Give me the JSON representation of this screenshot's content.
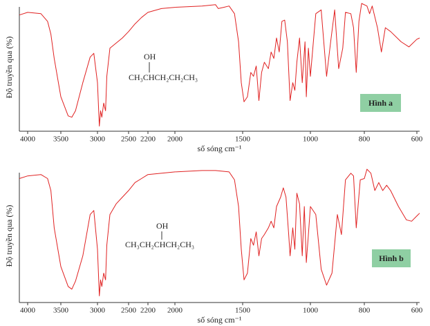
{
  "chart_data": [
    {
      "type": "line",
      "color": "#e02020",
      "ylabel": "Độ truyền qua (%)",
      "xlabel": "số sóng cm⁻¹",
      "annotation": {
        "substituent": "OH",
        "chain": "CH₃CHCH₂CH₂CH₃",
        "label": "Hình a"
      },
      "xlim": [
        4120,
        590
      ],
      "xticks": [
        4000,
        3500,
        3000,
        2500,
        2200,
        2000,
        1500,
        1000,
        800,
        600
      ],
      "ylim": [
        0,
        100
      ],
      "x": [
        4120,
        4000,
        3800,
        3700,
        3650,
        3600,
        3500,
        3400,
        3350,
        3300,
        3200,
        3100,
        3050,
        3000,
        2970,
        2950,
        2930,
        2900,
        2870,
        2850,
        2800,
        2700,
        2600,
        2500,
        2400,
        2300,
        2200,
        2100,
        2000,
        1800,
        1700,
        1680,
        1640,
        1600,
        1560,
        1530,
        1510,
        1490,
        1465,
        1440,
        1420,
        1400,
        1380,
        1360,
        1340,
        1310,
        1290,
        1270,
        1250,
        1230,
        1210,
        1190,
        1170,
        1150,
        1130,
        1115,
        1100,
        1080,
        1060,
        1040,
        1030,
        1015,
        1000,
        980,
        960,
        940,
        925,
        910,
        895,
        880,
        870,
        850,
        840,
        830,
        820,
        810,
        790,
        780,
        770,
        750,
        735,
        720,
        700,
        660,
        630,
        600,
        590
      ],
      "values": [
        91,
        93,
        92,
        86,
        76,
        57,
        27,
        12,
        11,
        16,
        38,
        58,
        61,
        38,
        4,
        16,
        11,
        22,
        16,
        43,
        65,
        69,
        73,
        78,
        84,
        89,
        93,
        96,
        97,
        98,
        99,
        96,
        97,
        98,
        92,
        70,
        38,
        23,
        27,
        46,
        43,
        51,
        24,
        46,
        54,
        49,
        62,
        57,
        73,
        62,
        86,
        87,
        70,
        24,
        38,
        32,
        54,
        73,
        38,
        70,
        27,
        65,
        43,
        92,
        95,
        43,
        70,
        95,
        49,
        65,
        93,
        92,
        81,
        46,
        86,
        100,
        98,
        92,
        98,
        81,
        62,
        81,
        78,
        70,
        66,
        72,
        73
      ]
    },
    {
      "type": "line",
      "color": "#e02020",
      "ylabel": "Độ truyền qua (%)",
      "xlabel": "số sóng cm⁻¹",
      "annotation": {
        "substituent": "OH",
        "chain": "CH₃CH₂CHCH₂CH₃",
        "label": "Hình b"
      },
      "xlim": [
        4120,
        590
      ],
      "xticks": [
        4000,
        3500,
        3000,
        2500,
        2200,
        2000,
        1500,
        1000,
        800,
        600
      ],
      "ylim": [
        0,
        100
      ],
      "x": [
        4120,
        4000,
        3800,
        3700,
        3650,
        3600,
        3500,
        3400,
        3350,
        3300,
        3200,
        3100,
        3050,
        3000,
        2970,
        2950,
        2930,
        2900,
        2870,
        2850,
        2800,
        2700,
        2600,
        2500,
        2400,
        2300,
        2200,
        2000,
        1800,
        1700,
        1600,
        1560,
        1530,
        1510,
        1490,
        1465,
        1440,
        1420,
        1400,
        1380,
        1360,
        1340,
        1310,
        1290,
        1270,
        1250,
        1220,
        1200,
        1180,
        1160,
        1150,
        1130,
        1115,
        1100,
        1080,
        1060,
        1045,
        1030,
        1015,
        1000,
        980,
        960,
        940,
        920,
        900,
        885,
        870,
        850,
        840,
        830,
        815,
        800,
        790,
        775,
        760,
        745,
        730,
        715,
        700,
        670,
        640,
        620,
        600,
        590
      ],
      "values": [
        93,
        95,
        96,
        93,
        84,
        56,
        27,
        12,
        10,
        16,
        35,
        66,
        69,
        40,
        5,
        17,
        12,
        22,
        17,
        43,
        66,
        74,
        79,
        84,
        90,
        93,
        96,
        98,
        99,
        99,
        98,
        92,
        72,
        40,
        17,
        22,
        48,
        43,
        53,
        35,
        48,
        51,
        56,
        61,
        56,
        72,
        79,
        86,
        79,
        51,
        35,
        56,
        40,
        82,
        74,
        35,
        72,
        30,
        51,
        72,
        66,
        25,
        13,
        22,
        66,
        51,
        92,
        97,
        95,
        56,
        92,
        93,
        100,
        97,
        84,
        90,
        84,
        88,
        84,
        72,
        62,
        61,
        65,
        67
      ]
    }
  ]
}
